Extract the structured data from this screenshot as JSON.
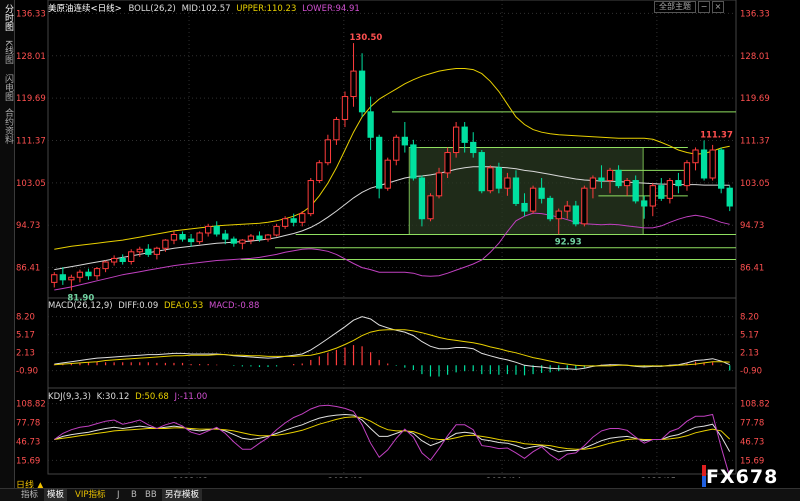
{
  "sidebar": {
    "items": [
      {
        "label": "分时图"
      },
      {
        "label": "K线图"
      },
      {
        "label": "闪电图"
      },
      {
        "label": "合约资料"
      }
    ]
  },
  "main_header": {
    "title": "美原油连续<日线>",
    "indicator": "BOLL(26,2)",
    "mid": "MID:102.57",
    "upper": "UPPER:110.23",
    "lower": "LOWER:94.91"
  },
  "macd_header": {
    "name": "MACD(26,12,9)",
    "diff": "DIFF:0.09",
    "dea": "DEA:0.53",
    "macd": "MACD:-0.88"
  },
  "kdj_header": {
    "name": "KDJ(9,3,3)",
    "k": "K:30.12",
    "d": "D:50.68",
    "j": "J:-11.00"
  },
  "menu": {
    "label": "全部主题",
    "close": "×"
  },
  "period_label": "日线 ▲",
  "tabs": [
    {
      "label": "指标"
    },
    {
      "label": "模板"
    },
    {
      "label": "VIP指标"
    },
    {
      "label": "J"
    },
    {
      "label": "B"
    },
    {
      "label": "BB"
    },
    {
      "label": "另存模板"
    }
  ],
  "watermark": "FX678",
  "colors": {
    "up": "#ff3c3c",
    "down": "#00e0a0",
    "mid": "#d8d8d8",
    "upper": "#e8d000",
    "lower": "#c040c0",
    "grid": "#303030",
    "axis_text": "#ff5050",
    "level_lines": "#90e060"
  },
  "chart_data": {
    "type": "candlestick",
    "x_ticks": [
      "2022/02",
      "2022/03",
      "2022/04",
      "2022/05"
    ],
    "price_ticks": [
      136.33,
      128.01,
      119.69,
      111.37,
      103.05,
      94.73,
      86.41
    ],
    "ylim": [
      82.0,
      137.0
    ],
    "annotations": [
      {
        "label": "130.50",
        "value": 130.5
      },
      {
        "label": "111.37",
        "value": 111.37
      },
      {
        "label": "92.93",
        "value": 92.93
      },
      {
        "label": "81.90",
        "value": 81.9
      }
    ],
    "candles": [
      [
        83.5,
        85.5,
        82.5,
        85.0
      ],
      [
        85.0,
        86.5,
        83.0,
        84.0
      ],
      [
        84.0,
        85.0,
        81.9,
        84.5
      ],
      [
        84.5,
        86.0,
        83.5,
        85.5
      ],
      [
        85.5,
        86.2,
        84.0,
        84.8
      ],
      [
        84.8,
        86.5,
        84.0,
        86.2
      ],
      [
        86.2,
        87.8,
        85.5,
        87.5
      ],
      [
        87.5,
        88.8,
        86.8,
        88.2
      ],
      [
        88.2,
        89.0,
        87.0,
        87.6
      ],
      [
        87.6,
        90.0,
        87.0,
        89.5
      ],
      [
        89.5,
        90.5,
        88.5,
        90.0
      ],
      [
        90.0,
        91.0,
        88.5,
        89.0
      ],
      [
        89.0,
        90.5,
        88.0,
        90.2
      ],
      [
        90.2,
        92.0,
        89.5,
        91.8
      ],
      [
        91.8,
        93.5,
        91.0,
        92.9
      ],
      [
        92.9,
        93.5,
        91.5,
        92.0
      ],
      [
        92.0,
        93.0,
        90.5,
        91.5
      ],
      [
        91.5,
        93.5,
        91.0,
        93.2
      ],
      [
        93.2,
        95.0,
        92.5,
        94.5
      ],
      [
        94.5,
        95.5,
        92.5,
        93.0
      ],
      [
        93.0,
        93.8,
        91.0,
        92.0
      ],
      [
        92.0,
        92.5,
        90.5,
        91.2
      ],
      [
        91.2,
        92.0,
        90.0,
        91.8
      ],
      [
        91.8,
        93.0,
        91.0,
        92.6
      ],
      [
        92.6,
        93.5,
        91.5,
        92.0
      ],
      [
        92.0,
        93.0,
        91.5,
        92.8
      ],
      [
        92.8,
        95.0,
        92.5,
        94.5
      ],
      [
        94.5,
        96.5,
        94.0,
        96.0
      ],
      [
        96.0,
        97.0,
        94.5,
        95.3
      ],
      [
        95.3,
        97.5,
        94.5,
        97.0
      ],
      [
        97.0,
        104.0,
        96.5,
        103.5
      ],
      [
        103.5,
        107.5,
        103.0,
        107.0
      ],
      [
        107.0,
        112.5,
        106.5,
        111.5
      ],
      [
        111.5,
        116.0,
        110.5,
        115.5
      ],
      [
        115.5,
        121.0,
        114.0,
        120.0
      ],
      [
        120.0,
        130.5,
        118.0,
        125.0
      ],
      [
        125.0,
        128.5,
        116.0,
        117.0
      ],
      [
        117.0,
        120.0,
        109.5,
        112.0
      ],
      [
        112.0,
        112.5,
        100.0,
        102.0
      ],
      [
        102.0,
        108.0,
        101.5,
        107.5
      ],
      [
        107.5,
        112.5,
        106.5,
        112.0
      ],
      [
        112.0,
        115.0,
        109.0,
        110.5
      ],
      [
        110.5,
        111.5,
        103.5,
        104.0
      ],
      [
        104.0,
        104.5,
        94.5,
        96.0
      ],
      [
        96.0,
        101.0,
        95.5,
        100.5
      ],
      [
        100.5,
        106.0,
        100.0,
        105.0
      ],
      [
        105.0,
        110.0,
        104.0,
        109.0
      ],
      [
        109.0,
        115.0,
        108.0,
        114.0
      ],
      [
        114.0,
        115.0,
        109.0,
        111.0
      ],
      [
        111.0,
        113.0,
        108.0,
        109.0
      ],
      [
        109.0,
        109.5,
        101.0,
        101.5
      ],
      [
        101.5,
        106.5,
        101.0,
        106.0
      ],
      [
        106.0,
        107.0,
        101.0,
        102.0
      ],
      [
        102.0,
        105.0,
        100.5,
        104.0
      ],
      [
        104.0,
        105.5,
        98.5,
        99.0
      ],
      [
        99.0,
        101.0,
        96.5,
        97.5
      ],
      [
        97.5,
        102.5,
        97.0,
        102.0
      ],
      [
        102.0,
        104.0,
        99.0,
        100.0
      ],
      [
        100.0,
        100.5,
        95.5,
        96.0
      ],
      [
        96.0,
        98.0,
        92.93,
        97.5
      ],
      [
        97.5,
        99.5,
        96.0,
        98.5
      ],
      [
        98.5,
        99.5,
        94.5,
        95.0
      ],
      [
        95.0,
        102.5,
        94.5,
        102.0
      ],
      [
        102.0,
        104.5,
        100.0,
        104.0
      ],
      [
        104.0,
        106.5,
        102.0,
        103.5
      ],
      [
        103.5,
        106.0,
        101.0,
        105.5
      ],
      [
        105.5,
        106.5,
        102.0,
        102.5
      ],
      [
        102.5,
        104.0,
        100.5,
        103.5
      ],
      [
        103.5,
        104.5,
        99.0,
        99.5
      ],
      [
        99.5,
        100.5,
        96.0,
        98.5
      ],
      [
        98.5,
        103.0,
        96.5,
        102.5
      ],
      [
        102.5,
        104.0,
        99.5,
        100.0
      ],
      [
        100.0,
        104.0,
        99.0,
        103.5
      ],
      [
        103.5,
        105.0,
        101.0,
        102.5
      ],
      [
        102.5,
        107.5,
        101.5,
        107.0
      ],
      [
        107.0,
        110.0,
        105.5,
        109.5
      ],
      [
        109.5,
        111.37,
        103.5,
        104.0
      ],
      [
        104.0,
        110.5,
        103.5,
        109.5
      ],
      [
        109.5,
        110.0,
        101.0,
        102.0
      ],
      [
        102.0,
        102.5,
        97.5,
        98.5
      ]
    ],
    "boll_mid": [
      86,
      86.3,
      86.6,
      86.9,
      87.2,
      87.5,
      87.8,
      88.1,
      88.4,
      88.7,
      89,
      89.3,
      89.6,
      89.9,
      90.2,
      90.4,
      90.6,
      90.8,
      91,
      91.2,
      91.3,
      91.4,
      91.5,
      91.6,
      91.8,
      92,
      92.3,
      92.7,
      93.1,
      93.6,
      94.3,
      95.2,
      96.3,
      97.5,
      98.8,
      100.1,
      101.2,
      102,
      102.5,
      103,
      103.5,
      104,
      104.3,
      104.4,
      104.6,
      104.9,
      105.3,
      105.7,
      106,
      106.2,
      106.2,
      106.2,
      106.1,
      106,
      105.8,
      105.5,
      105.3,
      105,
      104.7,
      104.4,
      104.1,
      103.8,
      103.6,
      103.5,
      103.4,
      103.4,
      103.3,
      103.2,
      103.1,
      103,
      102.9,
      102.8,
      102.8,
      102.7,
      102.7,
      102.7,
      102.6,
      102.6,
      102.6,
      102.57
    ],
    "boll_upper": [
      90,
      90.3,
      90.6,
      90.8,
      91,
      91.2,
      91.4,
      91.6,
      91.8,
      92.1,
      92.4,
      92.7,
      93,
      93.3,
      93.6,
      93.8,
      94,
      94.2,
      94.4,
      94.6,
      94.7,
      94.8,
      94.9,
      95,
      95.1,
      95.3,
      95.6,
      96,
      96.5,
      97.2,
      98.5,
      100.5,
      103,
      106,
      109.5,
      113,
      116,
      118,
      119.5,
      120.5,
      121.5,
      122.5,
      123.3,
      124,
      124.5,
      125,
      125.3,
      125.5,
      125.5,
      125.3,
      124.5,
      123,
      121,
      118.5,
      116,
      114.5,
      113.5,
      113,
      112.7,
      112.5,
      112.4,
      112.3,
      112.2,
      112.1,
      112,
      111.9,
      111.8,
      111.8,
      111.8,
      111.8,
      111.6,
      111,
      110.3,
      109.5,
      109,
      108.7,
      108.8,
      109.3,
      109.9,
      110.23
    ],
    "boll_lower": [
      82,
      82.3,
      82.6,
      83,
      83.4,
      83.8,
      84.2,
      84.6,
      85,
      85.3,
      85.6,
      85.9,
      86.2,
      86.5,
      86.8,
      87,
      87.2,
      87.4,
      87.6,
      87.8,
      87.9,
      88,
      88.1,
      88.2,
      88.4,
      88.7,
      89,
      89.4,
      89.7,
      90,
      90.1,
      89.9,
      89.6,
      89,
      88.1,
      87.2,
      86.4,
      86,
      85.5,
      85.5,
      85.5,
      85.5,
      85.3,
      84.8,
      84.7,
      84.8,
      85.3,
      85.9,
      86.5,
      87.1,
      87.9,
      89.4,
      91.2,
      93.5,
      95.6,
      96.5,
      97.1,
      97,
      96.7,
      96.3,
      95.8,
      95.3,
      95,
      94.9,
      94.8,
      94.9,
      94.8,
      94.6,
      94.4,
      94.2,
      94.2,
      94.6,
      95.3,
      95.9,
      96.4,
      96.7,
      96.4,
      95.9,
      95.3,
      94.91
    ],
    "levels": [
      {
        "value": 117.0,
        "from": 0.5,
        "to": 1.0
      },
      {
        "value": 110.0,
        "from": 0.54,
        "to": 0.93
      },
      {
        "value": 105.5,
        "from": 0.82,
        "to": 0.93
      },
      {
        "value": 100.5,
        "from": 0.8,
        "to": 0.93
      },
      {
        "value": 92.9,
        "from": 0.36,
        "to": 1.0
      },
      {
        "value": 90.3,
        "from": 0.33,
        "to": 1.0
      },
      {
        "value": 88.0,
        "from": 0.28,
        "to": 1.0
      }
    ],
    "range_box": {
      "x_from": 0.525,
      "x_to": 0.865,
      "y_top": 110.0,
      "y_bottom": 92.9
    },
    "macd": {
      "ticks": [
        8.2,
        5.17,
        2.13,
        -0.9
      ],
      "ylim": [
        -3.5,
        10.0
      ],
      "diff": [
        0.2,
        0.4,
        0.6,
        0.8,
        1.0,
        1.2,
        1.3,
        1.4,
        1.5,
        1.6,
        1.7,
        1.8,
        1.8,
        1.9,
        2.0,
        2.0,
        1.9,
        1.9,
        1.9,
        1.9,
        1.8,
        1.6,
        1.5,
        1.4,
        1.3,
        1.2,
        1.3,
        1.5,
        1.7,
        1.9,
        2.6,
        3.5,
        4.5,
        5.5,
        6.5,
        7.6,
        8.2,
        7.8,
        6.8,
        6.3,
        5.9,
        5.6,
        5.0,
        4.0,
        3.2,
        2.8,
        2.8,
        3.0,
        3.0,
        2.8,
        2.0,
        1.6,
        1.2,
        0.9,
        0.5,
        0.0,
        -0.2,
        -0.3,
        -0.5,
        -0.6,
        -0.6,
        -0.7,
        -0.5,
        -0.2,
        0.0,
        0.1,
        0.1,
        0.0,
        -0.2,
        -0.3,
        -0.2,
        -0.2,
        0.0,
        0.1,
        0.4,
        0.8,
        0.9,
        1.1,
        0.7,
        0.09
      ],
      "dea": [
        0.1,
        0.2,
        0.3,
        0.4,
        0.5,
        0.6,
        0.8,
        0.9,
        1.0,
        1.1,
        1.2,
        1.3,
        1.4,
        1.5,
        1.6,
        1.6,
        1.7,
        1.7,
        1.7,
        1.8,
        1.8,
        1.7,
        1.7,
        1.6,
        1.6,
        1.5,
        1.5,
        1.5,
        1.5,
        1.6,
        1.7,
        2.0,
        2.4,
        2.9,
        3.5,
        4.2,
        5.0,
        5.6,
        5.9,
        6.0,
        6.0,
        6.0,
        5.8,
        5.5,
        5.1,
        4.7,
        4.4,
        4.2,
        4.0,
        3.8,
        3.5,
        3.1,
        2.8,
        2.4,
        2.1,
        1.7,
        1.3,
        1.0,
        0.7,
        0.4,
        0.2,
        0.0,
        -0.1,
        -0.1,
        -0.1,
        -0.1,
        0.0,
        0.0,
        -0.1,
        -0.1,
        -0.1,
        -0.1,
        -0.1,
        0.0,
        0.1,
        0.2,
        0.4,
        0.6,
        0.6,
        0.53
      ],
      "hist": [
        0.1,
        0.2,
        0.3,
        0.4,
        0.5,
        0.6,
        0.5,
        0.5,
        0.5,
        0.5,
        0.5,
        0.5,
        0.4,
        0.4,
        0.4,
        0.4,
        0.2,
        0.2,
        0.2,
        0.1,
        0.0,
        -0.1,
        -0.2,
        -0.2,
        -0.3,
        -0.3,
        -0.2,
        0.0,
        0.2,
        0.3,
        0.9,
        1.5,
        2.1,
        2.6,
        3.0,
        3.4,
        3.2,
        2.2,
        0.9,
        0.3,
        -0.1,
        -0.4,
        -0.8,
        -1.5,
        -1.9,
        -1.9,
        -1.6,
        -1.2,
        -1.0,
        -1.0,
        -1.5,
        -1.5,
        -1.6,
        -1.5,
        -1.6,
        -1.7,
        -1.5,
        -1.3,
        -1.2,
        -1.0,
        -0.8,
        -0.7,
        -0.4,
        -0.1,
        0.1,
        0.2,
        0.1,
        0.0,
        -0.1,
        -0.2,
        -0.1,
        -0.1,
        0.1,
        0.1,
        0.3,
        0.6,
        0.5,
        0.5,
        0.1,
        -0.88
      ]
    },
    "kdj": {
      "ticks": [
        108.82,
        77.78,
        46.73,
        15.69
      ],
      "ylim": [
        0,
        118
      ],
      "k": [
        50,
        55,
        58,
        60,
        62,
        65,
        68,
        70,
        68,
        70,
        72,
        70,
        68,
        70,
        72,
        70,
        66,
        64,
        66,
        68,
        64,
        58,
        52,
        50,
        52,
        55,
        60,
        65,
        70,
        74,
        80,
        85,
        88,
        90,
        91,
        90,
        82,
        68,
        55,
        55,
        60,
        65,
        60,
        48,
        40,
        45,
        52,
        60,
        62,
        60,
        50,
        48,
        45,
        44,
        40,
        35,
        38,
        40,
        35,
        30,
        32,
        32,
        36,
        42,
        48,
        52,
        54,
        55,
        52,
        48,
        50,
        50,
        55,
        58,
        64,
        70,
        72,
        75,
        55,
        30.12
      ],
      "d": [
        50,
        52,
        54,
        56,
        58,
        60,
        62,
        64,
        65,
        66,
        67,
        68,
        68,
        68,
        69,
        69,
        68,
        67,
        67,
        67,
        66,
        64,
        61,
        58,
        56,
        56,
        57,
        59,
        62,
        65,
        70,
        75,
        79,
        83,
        86,
        87,
        86,
        80,
        72,
        66,
        64,
        64,
        63,
        58,
        52,
        50,
        50,
        53,
        56,
        57,
        55,
        53,
        50,
        48,
        46,
        43,
        42,
        41,
        40,
        37,
        35,
        34,
        34,
        36,
        40,
        44,
        47,
        50,
        51,
        50,
        50,
        50,
        51,
        53,
        56,
        61,
        64,
        67,
        64,
        50.68
      ],
      "j": [
        50,
        60,
        66,
        70,
        72,
        76,
        80,
        82,
        75,
        78,
        82,
        74,
        68,
        74,
        78,
        72,
        62,
        58,
        64,
        70,
        60,
        46,
        34,
        34,
        44,
        53,
        66,
        77,
        86,
        92,
        100,
        105,
        106,
        104,
        101,
        96,
        74,
        44,
        21,
        33,
        52,
        67,
        54,
        28,
        16,
        35,
        56,
        74,
        74,
        66,
        40,
        38,
        35,
        36,
        28,
        19,
        30,
        38,
        25,
        16,
        26,
        28,
        40,
        54,
        64,
        68,
        68,
        65,
        54,
        44,
        50,
        50,
        63,
        68,
        80,
        88,
        88,
        91,
        37,
        -11.0
      ]
    }
  }
}
